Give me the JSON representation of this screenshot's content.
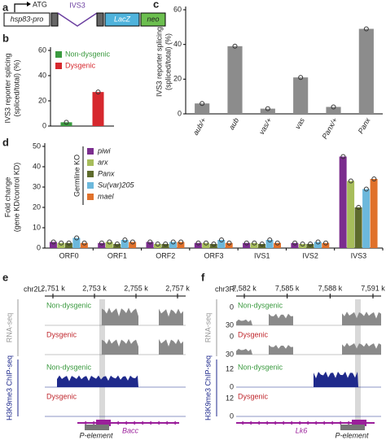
{
  "construct": {
    "panel": "a",
    "start": "ATG",
    "promoter": "hsp83-pro",
    "intron": "IVS3",
    "reporter": "LacZ",
    "marker": "neo"
  },
  "chart_data": [
    {
      "panel": "b",
      "type": "bar",
      "ylabel": [
        "IVS3 reporter splicing",
        "(spliced/total) (%)"
      ],
      "categories": [
        "Non-dysgenic",
        "Dysgenic"
      ],
      "values": [
        3,
        27
      ],
      "colors": [
        "#3a9a3f",
        "#d6282e"
      ],
      "ylim": [
        0,
        60
      ],
      "yticks": [
        0,
        20,
        40,
        60
      ],
      "legend": "top-left"
    },
    {
      "panel": "c",
      "type": "bar",
      "ylabel": [
        "IVS3 reporter splicing",
        "(spliced/total) (%)"
      ],
      "categories": [
        "aub/+",
        "aub",
        "vas/+",
        "vas",
        "Panx/+",
        "Panx"
      ],
      "values": [
        6,
        39,
        3,
        21,
        4,
        49
      ],
      "color": "#8c8c8c",
      "ylim": [
        0,
        60
      ],
      "yticks": [
        0,
        20,
        40,
        60
      ]
    },
    {
      "panel": "d",
      "type": "grouped-bar",
      "ylabel": [
        "Fold change",
        "(gene KD/control KD)"
      ],
      "legend_title": "Germline KO",
      "categories": [
        "ORF0",
        "ORF1",
        "ORF2",
        "ORF3",
        "IVS1",
        "IVS2",
        "IVS3"
      ],
      "series": [
        {
          "name": "piwi",
          "color": "#7b2d8e",
          "values": [
            3,
            2.5,
            3,
            2.5,
            2.5,
            2.5,
            45
          ]
        },
        {
          "name": "arx",
          "color": "#a7bd5b",
          "values": [
            2.5,
            3,
            2,
            2.5,
            2.5,
            2,
            33
          ]
        },
        {
          "name": "Panx",
          "color": "#5e6b2c",
          "values": [
            2.5,
            2,
            2,
            2,
            2,
            2,
            20
          ]
        },
        {
          "name": "Su(var)205",
          "color": "#6cb8dc",
          "values": [
            5,
            4,
            3,
            4,
            4,
            3,
            29
          ]
        },
        {
          "name": "mael",
          "color": "#e0712b",
          "values": [
            2.5,
            3,
            3,
            2.5,
            2.5,
            2.5,
            34
          ]
        }
      ],
      "ylim": [
        0,
        50
      ],
      "yticks": [
        0,
        10,
        20,
        30,
        40,
        50
      ]
    }
  ],
  "tracks": [
    {
      "panel": "e",
      "chrom": "chr2L:",
      "ticks": [
        "2,751 k",
        "2,753 k",
        "2,755 k",
        "2,757 k"
      ],
      "rna": "RNA-seq",
      "chip": "H3K9me3 ChIP-seq",
      "samples": [
        "Non-dysgenic",
        "Dysgenic",
        "Non-dysgenic",
        "Dysgenic"
      ],
      "gene": "Bacc",
      "element": "P-element"
    },
    {
      "panel": "f",
      "chrom": "chr3R:",
      "ticks": [
        "7,582 k",
        "7,585 k",
        "7,588 k",
        "7,591 k"
      ],
      "rna": "RNA-seq",
      "chip": "H3K9me3 ChIP-seq",
      "samples": [
        "Non-dysgenic",
        "Dysgenic",
        "Non-dysgenic",
        "Dysgenic"
      ],
      "scales": [
        [
          "0",
          "30"
        ],
        [
          "0",
          "30"
        ],
        [
          "0",
          "12"
        ],
        [
          "0",
          "12"
        ]
      ],
      "gene": "Lk6",
      "element": "P-element"
    }
  ]
}
